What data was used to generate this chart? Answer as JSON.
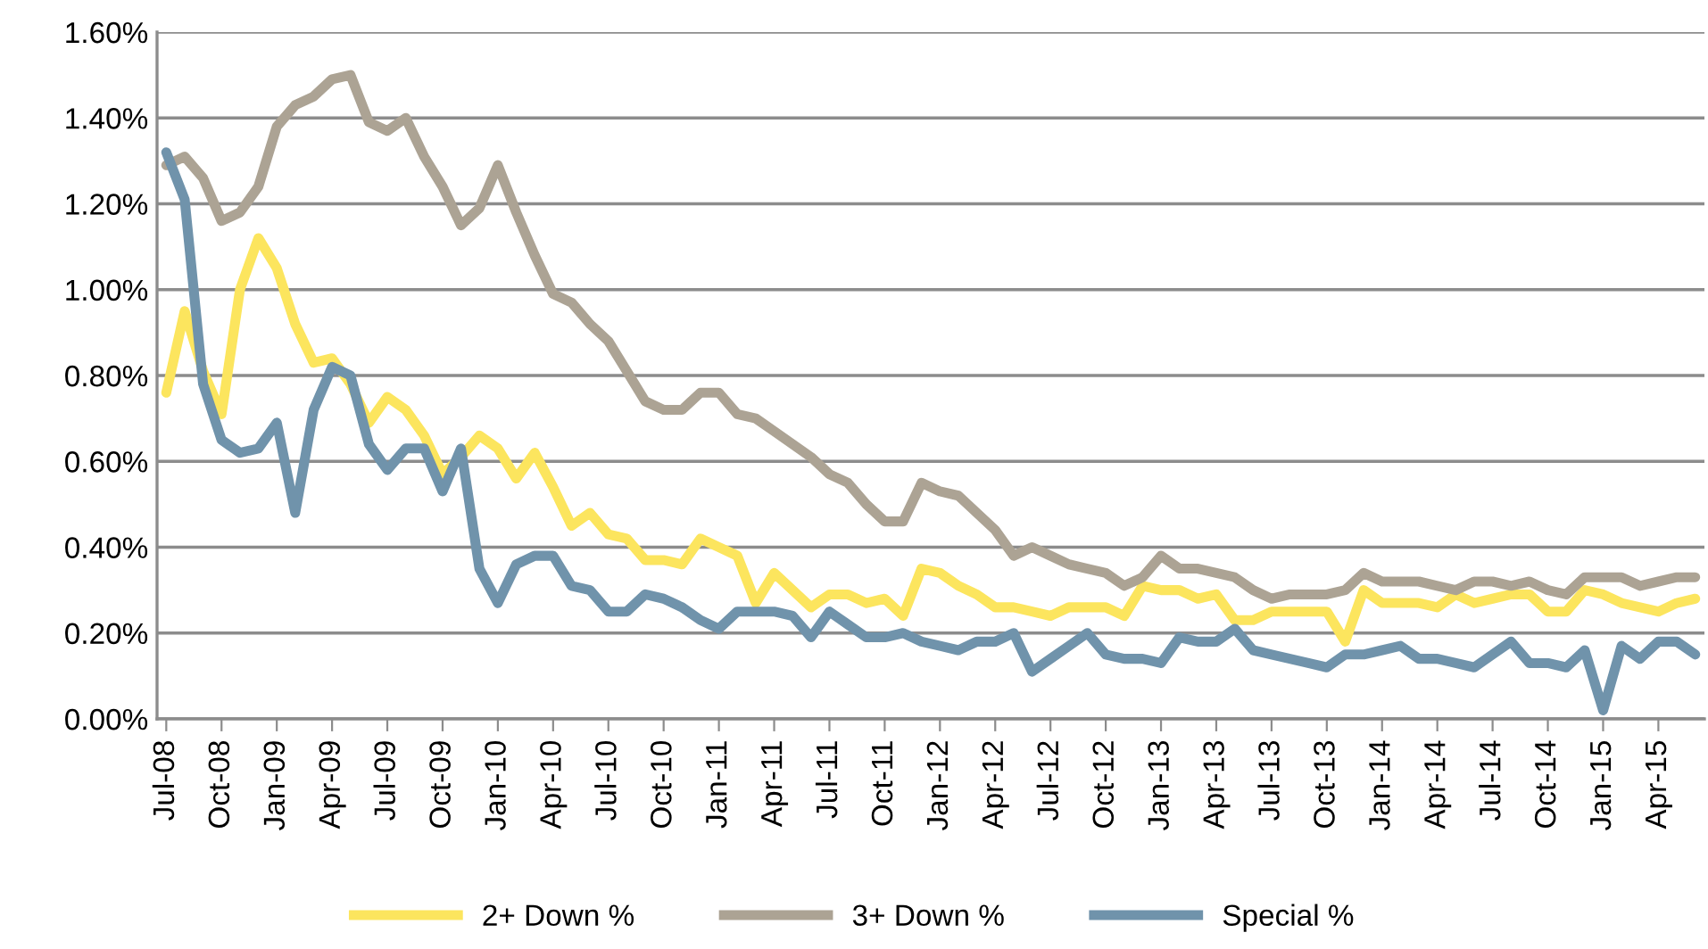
{
  "chart_data": {
    "type": "line",
    "categories": [
      "Jul-08",
      null,
      null,
      "Oct-08",
      null,
      null,
      "Jan-09",
      null,
      null,
      "Apr-09",
      null,
      null,
      "Jul-09",
      null,
      null,
      "Oct-09",
      null,
      null,
      "Jan-10",
      null,
      null,
      "Apr-10",
      null,
      null,
      "Jul-10",
      null,
      null,
      "Oct-10",
      null,
      null,
      "Jan-11",
      null,
      null,
      "Apr-11",
      null,
      null,
      "Jul-11",
      null,
      null,
      "Oct-11",
      null,
      null,
      "Jan-12",
      null,
      null,
      "Apr-12",
      null,
      null,
      "Jul-12",
      null,
      null,
      "Oct-12",
      null,
      null,
      "Jan-13",
      null,
      null,
      "Apr-13",
      null,
      null,
      "Jul-13",
      null,
      null,
      "Oct-13",
      null,
      null,
      "Jan-14",
      null,
      null,
      "Apr-14",
      null,
      null,
      "Jul-14",
      null,
      null,
      "Oct-14",
      null,
      null,
      "Jan-15",
      null,
      null,
      "Apr-15",
      null,
      null
    ],
    "series": [
      {
        "name": "2+ Down %",
        "color": "#fce55e",
        "values": [
          0.76,
          0.95,
          0.81,
          0.71,
          1.0,
          1.12,
          1.05,
          0.92,
          0.83,
          0.84,
          0.78,
          0.69,
          0.75,
          0.72,
          0.66,
          0.57,
          0.61,
          0.66,
          0.63,
          0.56,
          0.62,
          0.54,
          0.45,
          0.48,
          0.43,
          0.42,
          0.37,
          0.37,
          0.36,
          0.42,
          0.4,
          0.38,
          0.27,
          0.34,
          0.3,
          0.26,
          0.29,
          0.29,
          0.27,
          0.28,
          0.24,
          0.35,
          0.34,
          0.31,
          0.29,
          0.26,
          0.26,
          0.25,
          0.24,
          0.26,
          0.26,
          0.26,
          0.24,
          0.31,
          0.3,
          0.3,
          0.28,
          0.29,
          0.23,
          0.23,
          0.25,
          0.25,
          0.25,
          0.25,
          0.18,
          0.3,
          0.27,
          0.27,
          0.27,
          0.26,
          0.29,
          0.27,
          0.28,
          0.29,
          0.29,
          0.25,
          0.25,
          0.3,
          0.29,
          0.27,
          0.26,
          0.25,
          0.27,
          0.28
        ]
      },
      {
        "name": "3+ Down %",
        "color": "#aca394",
        "values": [
          1.29,
          1.31,
          1.26,
          1.16,
          1.18,
          1.24,
          1.38,
          1.43,
          1.45,
          1.49,
          1.5,
          1.39,
          1.37,
          1.4,
          1.31,
          1.24,
          1.15,
          1.19,
          1.29,
          1.18,
          1.08,
          0.99,
          0.97,
          0.92,
          0.88,
          0.81,
          0.74,
          0.72,
          0.72,
          0.76,
          0.76,
          0.71,
          0.7,
          0.67,
          0.64,
          0.61,
          0.57,
          0.55,
          0.5,
          0.46,
          0.46,
          0.55,
          0.53,
          0.52,
          0.48,
          0.44,
          0.38,
          0.4,
          0.38,
          0.36,
          0.35,
          0.34,
          0.31,
          0.33,
          0.38,
          0.35,
          0.35,
          0.34,
          0.33,
          0.3,
          0.28,
          0.29,
          0.29,
          0.29,
          0.3,
          0.34,
          0.32,
          0.32,
          0.32,
          0.31,
          0.3,
          0.32,
          0.32,
          0.31,
          0.32,
          0.3,
          0.29,
          0.33,
          0.33,
          0.33,
          0.31,
          0.32,
          0.33,
          0.33
        ]
      },
      {
        "name": "Special %",
        "color": "#7093ab",
        "values": [
          1.32,
          1.21,
          0.78,
          0.65,
          0.62,
          0.63,
          0.69,
          0.48,
          0.72,
          0.82,
          0.8,
          0.64,
          0.58,
          0.63,
          0.63,
          0.53,
          0.63,
          0.35,
          0.27,
          0.36,
          0.38,
          0.38,
          0.31,
          0.3,
          0.25,
          0.25,
          0.29,
          0.28,
          0.26,
          0.23,
          0.21,
          0.25,
          0.25,
          0.25,
          0.24,
          0.19,
          0.25,
          0.22,
          0.19,
          0.19,
          0.2,
          0.18,
          0.17,
          0.16,
          0.18,
          0.18,
          0.2,
          0.11,
          0.14,
          0.17,
          0.2,
          0.15,
          0.14,
          0.14,
          0.13,
          0.19,
          0.18,
          0.18,
          0.21,
          0.16,
          0.15,
          0.14,
          0.13,
          0.12,
          0.15,
          0.15,
          0.16,
          0.17,
          0.14,
          0.14,
          0.13,
          0.12,
          0.15,
          0.18,
          0.13,
          0.13,
          0.12,
          0.16,
          0.02,
          0.17,
          0.14,
          0.18,
          0.18,
          0.15
        ]
      }
    ],
    "ylim": [
      0,
      1.6
    ],
    "yticks": [
      {
        "value": 0,
        "label": "0.00%"
      },
      {
        "value": 0.2,
        "label": "0.20%"
      },
      {
        "value": 0.4,
        "label": "0.40%"
      },
      {
        "value": 0.6,
        "label": "0.60%"
      },
      {
        "value": 0.8,
        "label": "0.80%"
      },
      {
        "value": 1.0,
        "label": "1.00%"
      },
      {
        "value": 1.2,
        "label": "1.20%"
      },
      {
        "value": 1.4,
        "label": "1.40%"
      },
      {
        "value": 1.6,
        "label": "1.60%"
      }
    ],
    "grid": "y",
    "legend": "bottom",
    "marker": "none",
    "line_style": "solid"
  }
}
